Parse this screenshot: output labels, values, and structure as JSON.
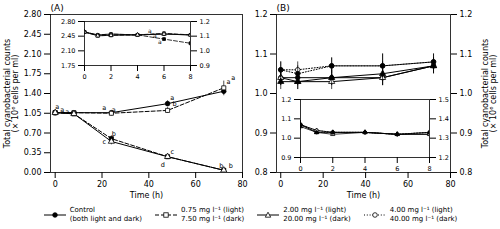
{
  "chart_data": [
    {
      "type": "line",
      "title": "(A)",
      "xlabel": "Time (h)",
      "ylabel": "Total cyanobacterial counts\n(× 10⁶ cells per ml)",
      "xlim": [
        -2,
        80
      ],
      "xticks": [
        0,
        20,
        40,
        60,
        80
      ],
      "ylim": [
        0.0,
        2.8
      ],
      "yticks": [
        {
          "value": 0.0,
          "label": "0.00"
        },
        0.35,
        {
          "value": 0.7,
          "label": "0.70"
        },
        1.05,
        {
          "value": 1.4,
          "label": "1.40"
        },
        1.75,
        {
          "value": 2.1,
          "label": "2.10"
        },
        2.45,
        {
          "value": 2.8,
          "label": "2.80"
        }
      ],
      "legend": "bottom",
      "x": [
        0,
        8,
        24,
        48,
        72
      ],
      "series": [
        {
          "name": "Control\n(both light and dark)",
          "marker": "circle",
          "line_style": "solid",
          "values": [
            1.06,
            1.06,
            1.06,
            1.22,
            1.44
          ],
          "errors": [
            0.03,
            0.02,
            0.03,
            0.05,
            0.08
          ]
        },
        {
          "name": "0.75 mg l⁻¹ (light)\n7.50 mg l⁻¹ (dark)",
          "marker": "square-open",
          "line_style": "dashed",
          "values": [
            1.06,
            1.06,
            1.05,
            1.1,
            1.5
          ],
          "errors": [
            0.03,
            0.02,
            0.02,
            0.05,
            0.12
          ]
        },
        {
          "name": "0.75 mg l⁻¹ (light)\n7.50 mg l⁻¹ (dark)",
          "marker": "square",
          "line_style": "dashed",
          "values": [
            1.06,
            1.04,
            0.6,
            0.28,
            0.04
          ],
          "errors": [
            0.03,
            0.02,
            0.05,
            0.04,
            0.01
          ]
        },
        {
          "name": "2.00 mg l⁻¹ (light)\n20.00 mg l⁻¹ (dark)",
          "marker": "triangle-open",
          "line_style": "solid",
          "values": [
            1.06,
            1.04,
            0.55,
            0.28,
            0.04
          ],
          "errors": [
            0.03,
            0.02,
            0.06,
            0.03,
            0.01
          ]
        }
      ],
      "annotations": [
        {
          "x": 3,
          "y": 1.125,
          "text": "a"
        },
        {
          "x": 3,
          "y": 1.08,
          "text": "a"
        },
        {
          "x": 3,
          "y": 1.03,
          "text": "a"
        },
        {
          "x": 21,
          "y": 1.1,
          "text": "a"
        },
        {
          "x": 25,
          "y": 1.08,
          "text": "a"
        },
        {
          "x": 25,
          "y": 0.64,
          "text": "b"
        },
        {
          "x": 21,
          "y": 0.51,
          "text": "c"
        },
        {
          "x": 50,
          "y": 1.28,
          "text": "a"
        },
        {
          "x": 51,
          "y": 1.17,
          "text": "b"
        },
        {
          "x": 50,
          "y": 0.33,
          "text": "c"
        },
        {
          "x": 46,
          "y": 0.09,
          "text": "d"
        },
        {
          "x": 74,
          "y": 1.56,
          "text": "a"
        },
        {
          "x": 76,
          "y": 1.64,
          "text": "a"
        },
        {
          "x": 75,
          "y": 0.08,
          "text": "b"
        },
        {
          "x": 71,
          "y": 0.08,
          "text": "b"
        }
      ]
    },
    {
      "type": "line",
      "xlim": [
        0,
        8
      ],
      "xticks": [
        0,
        2,
        4,
        6,
        8
      ],
      "ylim": [
        1.75,
        2.8
      ],
      "yticks": [
        1.75,
        {
          "value": 2.1,
          "label": "2.10"
        },
        2.45,
        {
          "value": 2.8,
          "label": "2.80"
        }
      ],
      "y2lim": [
        0.9,
        1.2
      ],
      "y2ticks": [
        0.9,
        {
          "value": 1.0,
          "label": "1.0"
        },
        1.1,
        1.2
      ],
      "x": [
        0,
        1,
        2,
        4,
        6,
        8
      ],
      "series": [
        {
          "name": "Control\n(both light and dark)",
          "marker": "circle",
          "line_style": "solid",
          "values": [
            2.55,
            2.48,
            2.5,
            2.48,
            2.5,
            2.48
          ],
          "errors": [
            0.04,
            0.03,
            0.03,
            0.03,
            0.03,
            0.04
          ]
        },
        {
          "name": "0.75 mg l⁻¹ (light)\n7.50 mg l⁻¹ (dark)",
          "marker": "square-open",
          "line_style": "dashed",
          "values": [
            2.55,
            2.48,
            2.5,
            2.48,
            2.52,
            2.48
          ],
          "errors": [
            0.04,
            0.03,
            0.03,
            0.03,
            0.03,
            0.04
          ]
        },
        {
          "name": "0.75 mg l⁻¹ (light)\n7.50 mg l⁻¹ (dark)",
          "marker": "square",
          "line_style": "dashed",
          "values": [
            2.55,
            2.46,
            2.47,
            2.48,
            2.38,
            2.28
          ],
          "errors": [
            0.04,
            0.03,
            0.03,
            0.03,
            0.03,
            0.04
          ]
        },
        {
          "name": "2.00 mg l⁻¹ (light)\n20.00 mg l⁻¹ (dark)",
          "marker": "triangle-open",
          "line_style": "solid",
          "values": [
            2.55,
            2.46,
            2.47,
            2.48,
            2.5,
            2.48
          ],
          "errors": [
            0.04,
            0.03,
            0.03,
            0.03,
            0.03,
            0.04
          ]
        }
      ],
      "annotations": [
        {
          "x": 5.3,
          "y": 2.52,
          "text": "a"
        },
        {
          "x": 5.3,
          "y": 2.41,
          "text": "a"
        },
        {
          "x": 5.3,
          "y": 2.27,
          "text": "a"
        }
      ]
    },
    {
      "type": "line",
      "title": "(B)",
      "xlabel": "Time (h)",
      "y2label": "Total cyanobacterial counts\n(× 10⁶ cells per ml)",
      "xlim": [
        -2,
        80
      ],
      "xticks": [
        0,
        20,
        40,
        60,
        80
      ],
      "ylim": [
        0.8,
        1.2
      ],
      "yticks": [
        0.8,
        0.9,
        {
          "value": 1.0,
          "label": "1.0"
        },
        1.1,
        1.2
      ],
      "y2lim": [
        0.8,
        1.2
      ],
      "y2ticks": [
        0.8,
        0.9,
        {
          "value": 1.0,
          "label": "1.0"
        },
        1.1,
        1.2
      ],
      "legend": "bottom",
      "x": [
        0,
        8,
        24,
        48,
        72
      ],
      "series": [
        {
          "name": "Control\n(both light and dark)",
          "marker": "circle",
          "line_style": "solid",
          "values": [
            1.04,
            1.04,
            1.04,
            1.04,
            1.07
          ],
          "errors": [
            0.02,
            0.02,
            0.02,
            0.02,
            0.02
          ]
        },
        {
          "name": "2.00 mg l⁻¹ (light)\n20.00 mg l⁻¹ (dark)",
          "marker": "triangle-open",
          "line_style": "solid",
          "values": [
            1.04,
            1.03,
            1.03,
            1.04,
            1.07
          ],
          "errors": [
            0.02,
            0.02,
            0.02,
            0.02,
            0.02
          ]
        },
        {
          "name": "2.00 mg l⁻¹ (light)\n20.00 mg l⁻¹ (dark)",
          "marker": "triangle",
          "line_style": "solid",
          "values": [
            1.03,
            1.03,
            1.04,
            1.05,
            1.07
          ],
          "errors": [
            0.02,
            0.02,
            0.02,
            0.03,
            0.02
          ]
        },
        {
          "name": "4.00 mg l⁻¹ (light)\n40.00 mg l⁻¹ (dark)",
          "marker": "circle-open",
          "line_style": "dotted",
          "values": [
            1.06,
            1.06,
            1.07,
            1.07,
            1.08
          ],
          "errors": [
            0.02,
            0.02,
            0.02,
            0.03,
            0.02
          ]
        },
        {
          "name": "4.00 mg l⁻¹ (light)\n40.00 mg l⁻¹ (dark)",
          "marker": "circle",
          "line_style": "dotted",
          "values": [
            1.06,
            1.05,
            1.07,
            1.07,
            1.08
          ],
          "errors": [
            0.02,
            0.02,
            0.02,
            0.03,
            0.02
          ]
        }
      ]
    },
    {
      "type": "line",
      "xlim": [
        0,
        8
      ],
      "xticks": [
        0,
        2,
        4,
        6,
        8
      ],
      "ylim": [
        0.9,
        1.2
      ],
      "yticks": [
        0.9,
        {
          "value": 1.0,
          "label": "1.0"
        },
        1.1,
        1.2
      ],
      "y2lim": [
        1.2,
        1.5
      ],
      "y2ticks": [
        1.2,
        1.3,
        1.4,
        1.5
      ],
      "x": [
        0,
        1,
        2,
        4,
        6,
        8
      ],
      "series": [
        {
          "name": "Control\n(both light and dark)",
          "marker": "circle",
          "line_style": "solid",
          "values": [
            1.07,
            1.04,
            1.03,
            1.03,
            1.02,
            1.02
          ],
          "errors": [
            0.02,
            0.01,
            0.01,
            0.01,
            0.01,
            0.02
          ]
        },
        {
          "name": "2.00 mg l⁻¹ (light)\n20.00 mg l⁻¹ (dark)",
          "marker": "triangle-open",
          "line_style": "solid",
          "values": [
            1.07,
            1.03,
            1.02,
            1.03,
            1.02,
            1.02
          ],
          "errors": [
            0.02,
            0.01,
            0.01,
            0.01,
            0.01,
            0.02
          ]
        },
        {
          "name": "2.00 mg l⁻¹ (light)\n20.00 mg l⁻¹ (dark)",
          "marker": "triangle",
          "line_style": "solid",
          "values": [
            1.06,
            1.03,
            1.03,
            1.03,
            1.02,
            1.03
          ],
          "errors": [
            0.02,
            0.01,
            0.01,
            0.01,
            0.01,
            0.02
          ]
        },
        {
          "name": "4.00 mg l⁻¹ (light)\n40.00 mg l⁻¹ (dark)",
          "marker": "circle-open",
          "line_style": "dotted",
          "values": [
            1.07,
            1.04,
            1.03,
            1.03,
            1.02,
            1.03
          ],
          "errors": [
            0.02,
            0.01,
            0.01,
            0.01,
            0.01,
            0.02
          ]
        },
        {
          "name": "4.00 mg l⁻¹ (light)\n40.00 mg l⁻¹ (dark)",
          "marker": "circle",
          "line_style": "dotted",
          "values": [
            1.07,
            1.03,
            1.03,
            1.03,
            1.02,
            1.03
          ],
          "errors": [
            0.02,
            0.01,
            0.01,
            0.01,
            0.01,
            0.02
          ]
        }
      ]
    }
  ]
}
